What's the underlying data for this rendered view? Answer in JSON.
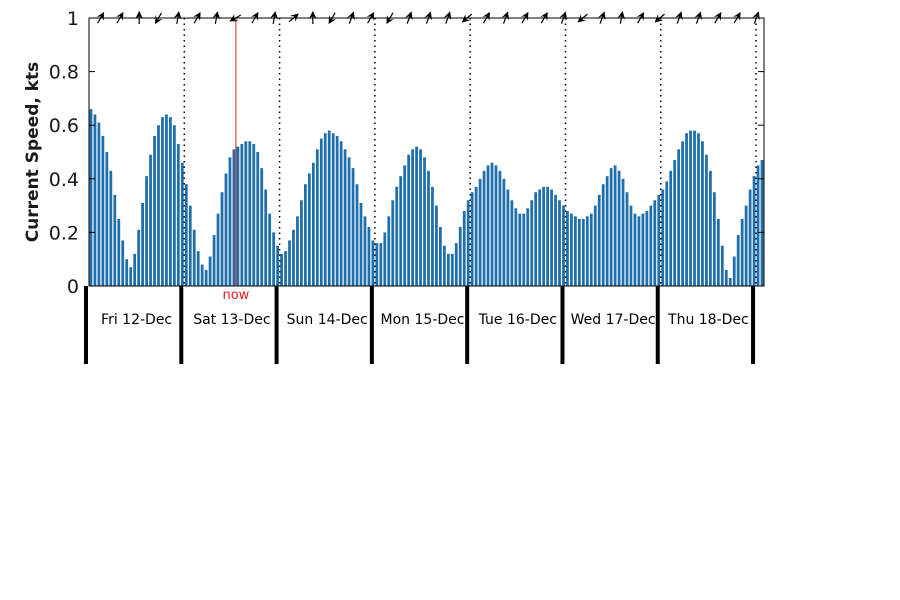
{
  "chart_data": {
    "type": "bar",
    "ylabel": "Current Speed, kts",
    "ylim": [
      0,
      1
    ],
    "yticks": [
      "0",
      "0.2",
      "0.4",
      "0.6",
      "0.8",
      "1"
    ],
    "ytick_values": [
      0,
      0.2,
      0.4,
      0.6,
      0.8,
      1
    ],
    "x_start": "2014-12-12 00:00",
    "hours_per_bar": 1,
    "days": [
      "Fri 12-Dec",
      "Sat 13-Dec",
      "Sun 14-Dec",
      "Mon 15-Dec",
      "Tue 16-Dec",
      "Wed 17-Dec",
      "Thu 18-Dec"
    ],
    "now_label": "now",
    "now_hour": 37,
    "bar_color": "#1f6fad",
    "now_color": "#e8191c",
    "values": [
      0.66,
      0.64,
      0.61,
      0.56,
      0.5,
      0.43,
      0.34,
      0.25,
      0.17,
      0.1,
      0.07,
      0.12,
      0.21,
      0.31,
      0.41,
      0.49,
      0.56,
      0.6,
      0.63,
      0.64,
      0.63,
      0.6,
      0.53,
      0.46,
      0.38,
      0.3,
      0.21,
      0.13,
      0.08,
      0.06,
      0.11,
      0.19,
      0.27,
      0.35,
      0.42,
      0.48,
      0.51,
      0.52,
      0.53,
      0.54,
      0.54,
      0.53,
      0.5,
      0.44,
      0.36,
      0.27,
      0.2,
      0.15,
      0.12,
      0.13,
      0.17,
      0.21,
      0.26,
      0.32,
      0.38,
      0.42,
      0.46,
      0.51,
      0.55,
      0.57,
      0.58,
      0.57,
      0.56,
      0.54,
      0.51,
      0.48,
      0.44,
      0.38,
      0.31,
      0.26,
      0.22,
      0.17,
      0.16,
      0.16,
      0.2,
      0.26,
      0.32,
      0.37,
      0.41,
      0.45,
      0.49,
      0.51,
      0.52,
      0.51,
      0.48,
      0.43,
      0.37,
      0.3,
      0.22,
      0.15,
      0.12,
      0.12,
      0.16,
      0.22,
      0.28,
      0.32,
      0.35,
      0.37,
      0.4,
      0.43,
      0.45,
      0.46,
      0.45,
      0.43,
      0.4,
      0.36,
      0.32,
      0.29,
      0.27,
      0.27,
      0.29,
      0.32,
      0.35,
      0.36,
      0.37,
      0.37,
      0.36,
      0.34,
      0.32,
      0.3,
      0.28,
      0.27,
      0.26,
      0.25,
      0.25,
      0.26,
      0.27,
      0.3,
      0.34,
      0.38,
      0.41,
      0.44,
      0.45,
      0.43,
      0.4,
      0.35,
      0.3,
      0.27,
      0.26,
      0.27,
      0.28,
      0.3,
      0.32,
      0.34,
      0.36,
      0.39,
      0.43,
      0.47,
      0.51,
      0.54,
      0.57,
      0.58,
      0.58,
      0.57,
      0.54,
      0.49,
      0.43,
      0.35,
      0.25,
      0.15,
      0.06,
      0.03,
      0.11,
      0.19,
      0.25,
      0.3,
      0.36,
      0.41,
      0.45,
      0.47
    ],
    "direction_arrows_deg": [
      120,
      120,
      90,
      300,
      100,
      120,
      100,
      330,
      120,
      100,
      140,
      90,
      300,
      110,
      120,
      300,
      110,
      110,
      110,
      320,
      120,
      110,
      120,
      120,
      110,
      320,
      110,
      100,
      120,
      320,
      110,
      110,
      120,
      120,
      110
    ]
  }
}
